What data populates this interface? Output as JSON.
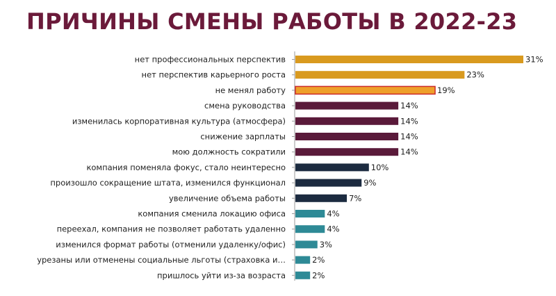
{
  "chart_data": {
    "type": "bar",
    "orientation": "horizontal",
    "title": "ПРИЧИНЫ СМЕНЫ РАБОТЫ В 2022-23",
    "xlabel": "",
    "ylabel": "",
    "xlim": [
      0,
      31
    ],
    "grid": false,
    "legend": "none",
    "value_suffix": "%",
    "categories": [
      "нет профессиональных перспектив",
      "нет перспектив карьерного роста",
      "не менял работу",
      "смена руководства",
      "изменилась корпоративная культура (атмосфера)",
      "снижение зарплаты",
      "мою должность сократили",
      "компания поменяла фокус, стало неинтересно",
      "произошло сокращение штата, изменился функционал",
      "увеличение объема работы",
      "компания сменила локацию офиса",
      "переехал, компания не позволяет работать удаленно",
      "изменился формат работы (отменили удаленку/офис)",
      "урезаны или отменены социальные льготы (страховка и…",
      "пришлось уйти из-за возраста"
    ],
    "values": [
      31,
      23,
      19,
      14,
      14,
      14,
      14,
      10,
      9,
      7,
      4,
      4,
      3,
      2,
      2
    ],
    "value_labels": [
      "31%",
      "23%",
      "19%",
      "14%",
      "14%",
      "14%",
      "14%",
      "10%",
      "9%",
      "7%",
      "4%",
      "4%",
      "3%",
      "2%",
      "2%"
    ],
    "bar_colors": [
      "#d99a1f",
      "#d99a1f",
      "#eea02a",
      "#5a1a3a",
      "#5a1a3a",
      "#5a1a3a",
      "#5a1a3a",
      "#1c2b40",
      "#1c2b40",
      "#1c2b40",
      "#2e8a96",
      "#2e8a96",
      "#2e8a96",
      "#2e8a96",
      "#2e8a96"
    ],
    "highlight_index": 2,
    "highlight_border_color": "#cc2a2a",
    "axis_color": "#9a9a9a",
    "title_color": "#6b1a3a"
  }
}
